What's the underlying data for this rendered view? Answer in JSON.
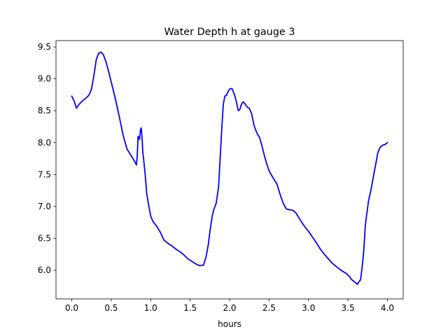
{
  "chart_data": {
    "type": "line",
    "title": "Water Depth h at gauge 3",
    "xlabel": "hours",
    "ylabel": "",
    "xlim": [
      -0.2,
      4.2
    ],
    "ylim": [
      5.55,
      9.6
    ],
    "xticks": [
      0.0,
      0.5,
      1.0,
      1.5,
      2.0,
      2.5,
      3.0,
      3.5,
      4.0
    ],
    "xtick_labels": [
      "0.0",
      "0.5",
      "1.0",
      "1.5",
      "2.0",
      "2.5",
      "3.0",
      "3.5",
      "4.0"
    ],
    "yticks": [
      6.0,
      6.5,
      7.0,
      7.5,
      8.0,
      8.5,
      9.0,
      9.5
    ],
    "ytick_labels": [
      "6.0",
      "6.5",
      "7.0",
      "7.5",
      "8.0",
      "8.5",
      "9.0",
      "9.5"
    ],
    "grid": false,
    "series": [
      {
        "color": "#0000ff",
        "x": [
          0.0,
          0.03,
          0.06,
          0.08,
          0.1,
          0.13,
          0.16,
          0.19,
          0.22,
          0.25,
          0.28,
          0.31,
          0.34,
          0.37,
          0.4,
          0.43,
          0.46,
          0.5,
          0.55,
          0.6,
          0.65,
          0.7,
          0.75,
          0.79,
          0.82,
          0.83,
          0.84,
          0.86,
          0.87,
          0.88,
          0.89,
          0.9,
          0.91,
          0.93,
          0.95,
          0.97,
          1.0,
          1.03,
          1.07,
          1.12,
          1.17,
          1.22,
          1.27,
          1.32,
          1.37,
          1.42,
          1.47,
          1.52,
          1.57,
          1.62,
          1.67,
          1.7,
          1.73,
          1.75,
          1.78,
          1.8,
          1.83,
          1.86,
          1.88,
          1.9,
          1.92,
          1.94,
          1.96,
          1.98,
          2.0,
          2.03,
          2.05,
          2.07,
          2.09,
          2.11,
          2.13,
          2.15,
          2.17,
          2.19,
          2.21,
          2.23,
          2.25,
          2.28,
          2.31,
          2.33,
          2.35,
          2.38,
          2.41,
          2.44,
          2.47,
          2.5,
          2.55,
          2.6,
          2.65,
          2.68,
          2.7,
          2.72,
          2.75,
          2.8,
          2.84,
          2.88,
          2.92,
          2.96,
          3.0,
          3.05,
          3.1,
          3.15,
          3.2,
          3.25,
          3.3,
          3.35,
          3.4,
          3.45,
          3.48,
          3.5,
          3.52,
          3.54,
          3.56,
          3.58,
          3.6,
          3.62,
          3.64,
          3.66,
          3.68,
          3.7,
          3.72,
          3.74,
          3.76,
          3.79,
          3.82,
          3.85,
          3.88,
          3.91,
          3.94,
          3.97,
          4.0
        ],
        "values": [
          8.73,
          8.65,
          8.54,
          8.58,
          8.61,
          8.65,
          8.68,
          8.71,
          8.75,
          8.84,
          9.05,
          9.3,
          9.4,
          9.42,
          9.38,
          9.28,
          9.15,
          8.95,
          8.7,
          8.42,
          8.12,
          7.9,
          7.8,
          7.72,
          7.65,
          7.8,
          8.1,
          8.05,
          8.2,
          8.23,
          8.1,
          7.85,
          7.75,
          7.5,
          7.2,
          7.05,
          6.85,
          6.76,
          6.7,
          6.6,
          6.47,
          6.42,
          6.38,
          6.33,
          6.29,
          6.24,
          6.18,
          6.14,
          6.1,
          6.07,
          6.08,
          6.2,
          6.4,
          6.6,
          6.85,
          6.95,
          7.05,
          7.3,
          7.75,
          8.2,
          8.6,
          8.73,
          8.74,
          8.8,
          8.84,
          8.85,
          8.79,
          8.72,
          8.62,
          8.5,
          8.52,
          8.6,
          8.64,
          8.62,
          8.58,
          8.55,
          8.54,
          8.45,
          8.27,
          8.2,
          8.14,
          8.08,
          7.95,
          7.8,
          7.67,
          7.56,
          7.45,
          7.35,
          7.15,
          7.05,
          7.0,
          6.96,
          6.95,
          6.94,
          6.9,
          6.82,
          6.74,
          6.67,
          6.61,
          6.52,
          6.43,
          6.33,
          6.25,
          6.18,
          6.11,
          6.06,
          6.01,
          5.97,
          5.95,
          5.92,
          5.9,
          5.86,
          5.84,
          5.82,
          5.8,
          5.78,
          5.82,
          5.85,
          6.05,
          6.3,
          6.7,
          6.9,
          7.08,
          7.25,
          7.45,
          7.65,
          7.85,
          7.93,
          7.96,
          7.97,
          8.0
        ]
      }
    ]
  }
}
